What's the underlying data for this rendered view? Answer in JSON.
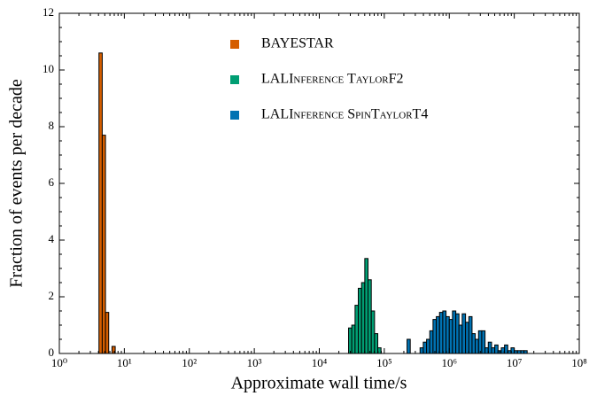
{
  "chart_data": {
    "type": "histogram",
    "xlabel": "Approximate wall time/s",
    "ylabel": "Fraction of events per decade",
    "xscale": "log",
    "xlim": [
      1,
      100000000
    ],
    "ylim": [
      0,
      12
    ],
    "xticks": [
      {
        "value": 1,
        "label": "10⁰"
      },
      {
        "value": 10,
        "label": "10¹"
      },
      {
        "value": 100,
        "label": "10²"
      },
      {
        "value": 1000,
        "label": "10³"
      },
      {
        "value": 10000,
        "label": "10⁴"
      },
      {
        "value": 100000,
        "label": "10⁵"
      },
      {
        "value": 1000000,
        "label": "10⁶"
      },
      {
        "value": 10000000,
        "label": "10⁷"
      },
      {
        "value": 100000000,
        "label": "10⁸"
      }
    ],
    "yticks": [
      0,
      2,
      4,
      6,
      8,
      10,
      12
    ],
    "series": [
      {
        "name": "BAYESTAR",
        "color": "#d55e00",
        "bins": [
          4.07,
          4.57,
          5.13,
          5.75,
          6.46,
          7.24
        ],
        "values": [
          10.6,
          7.7,
          1.45,
          0,
          0.25
        ]
      },
      {
        "name": "LALInference TaylorF2",
        "color": "#009e73",
        "bins": [
          28200,
          31600,
          35500,
          39800,
          44700,
          50100,
          56200,
          63100,
          70800,
          79400,
          89100
        ],
        "values": [
          0.9,
          1.0,
          1.7,
          2.3,
          2.5,
          3.35,
          2.6,
          1.5,
          0.7,
          0.2
        ]
      },
      {
        "name": "LALInference SpinTaylorT4",
        "color": "#0072b2",
        "bins": [
          224000,
          251000,
          282000,
          316000,
          355000,
          398000,
          447000,
          501000,
          562000,
          631000,
          708000,
          794000,
          891000,
          1000000,
          1120000,
          1260000,
          1410000,
          1580000,
          1780000,
          2000000,
          2240000,
          2510000,
          2820000,
          3160000,
          3550000,
          3980000,
          4470000,
          5010000,
          5620000,
          6310000,
          7080000,
          7940000,
          8910000,
          10000000,
          11200000,
          12600000,
          14100000,
          15800000
        ],
        "values": [
          0.5,
          0,
          0,
          0,
          0.2,
          0.4,
          0.5,
          0.8,
          1.2,
          1.3,
          1.45,
          1.5,
          1.3,
          1.2,
          1.5,
          1.4,
          1.0,
          1.4,
          1.1,
          1.3,
          0.7,
          0.5,
          0.8,
          0.8,
          0.2,
          0.4,
          0.2,
          0.3,
          0.1,
          0.2,
          0.3,
          0.1,
          0.2,
          0.1,
          0.1,
          0.1,
          0.1
        ]
      }
    ]
  }
}
